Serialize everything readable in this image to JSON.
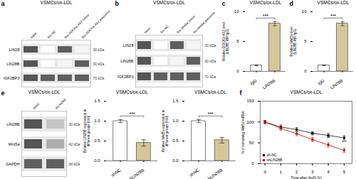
{
  "chart_data": [
    {
      "type": "heatmap",
      "panel_label": "a",
      "title": "VSMCs/ox-LDL",
      "x": [
        "Input",
        "Bio-NC",
        "Bio-DOCK9-AS2 sense",
        "Bio-DOCK9-AS2 antisense"
      ],
      "y": [
        "LIN28",
        "LIN28B",
        "IGF2BP3"
      ],
      "cells": [
        [
          0.85,
          0.0,
          0.8,
          0.05
        ],
        [
          0.85,
          0.0,
          0.05,
          0.8
        ],
        [
          0.85,
          0.8,
          0.8,
          0.8
        ]
      ],
      "annotations": [
        "30 kDa",
        "30 kDa",
        "70 kDa"
      ],
      "color": "#E8E8E8"
    },
    {
      "type": "heatmap",
      "panel_label": "b",
      "title": "VSMCs/ox-LDL",
      "x": [
        "Input",
        "Bio-NC",
        "Bio-Wnt5a sense",
        "Bio-Wnt5a antisense"
      ],
      "y": [
        "LIN28",
        "LIN28B",
        "IGF2BP3"
      ],
      "cells": [
        [
          0.85,
          0.0,
          0.8,
          0.05
        ],
        [
          0.85,
          0.0,
          0.05,
          0.8
        ],
        [
          0.85,
          0.8,
          0.8,
          0.8
        ]
      ],
      "annotations": [
        "30 kDa",
        "30 kDa",
        "70 kDa"
      ],
      "color": "#E8E8E8"
    },
    {
      "type": "bar",
      "panel_label": "c",
      "title": "VSMCs/ox-LDL",
      "categories": [
        "IgG",
        "LIN28B"
      ],
      "values": [
        1.0,
        8.0
      ],
      "errors": [
        0.08,
        0.35
      ],
      "colors": [
        "#FFFFFF",
        "#D4C89A"
      ],
      "ylabel": "Relative DOCK9-AS2 level\n(LIN28B RIP/IgG)",
      "ylim": [
        0,
        10
      ],
      "yticks": [
        0,
        5,
        10
      ],
      "annotations": [
        {
          "text": "***",
          "x": [
            "IgG",
            "LIN28B"
          ]
        }
      ]
    },
    {
      "type": "bar",
      "panel_label": "d",
      "title": "VSMCs/ox-LDL",
      "categories": [
        "IgG",
        "LIN28B"
      ],
      "values": [
        1.0,
        8.0
      ],
      "errors": [
        0.08,
        0.35
      ],
      "colors": [
        "#FFFFFF",
        "#D4C89A"
      ],
      "ylabel": "Relative Wnt5a level\n(LIN28B RIP/IgG)",
      "ylim": [
        0,
        10
      ],
      "yticks": [
        0,
        5,
        10
      ],
      "annotations": [
        {
          "text": "***",
          "x": [
            "IgG",
            "LIN28B"
          ]
        }
      ]
    },
    {
      "type": "heatmap",
      "panel_label": "e",
      "title": "VSMCs/ox-LDL",
      "x": [
        "shNC",
        "shLIN28B"
      ],
      "y": [
        "LIN28B",
        "Wnt5a",
        "GAPDH"
      ],
      "cells": [
        [
          0.85,
          0.3
        ],
        [
          0.85,
          0.4
        ],
        [
          0.8,
          0.8
        ]
      ],
      "annotations": [
        "30 kDa",
        "42 kDa",
        "36 kDa"
      ],
      "color": "#E8E8E8"
    },
    {
      "type": "bar",
      "title": "VSMCs/ox-LDL",
      "categories": [
        "shNC",
        "shLIN28B"
      ],
      "values": [
        1.0,
        0.45
      ],
      "errors": [
        0.04,
        0.08
      ],
      "colors": [
        "#FFFFFF",
        "#D4C89A"
      ],
      "ylabel": "Relative LIN28B expression in\ndifferent groups (fold)",
      "ylim": [
        0,
        1.5
      ],
      "yticks": [
        {
          "value": 0,
          "label": "0.0"
        },
        0.5,
        {
          "value": 1,
          "label": "1.0"
        },
        1.5
      ],
      "annotations": [
        {
          "text": "***",
          "x": [
            "shNC",
            "shLIN28B"
          ]
        }
      ]
    },
    {
      "type": "bar",
      "title": "VSMCs/ox-LDL",
      "categories": [
        "shNC",
        "shLIN28B"
      ],
      "values": [
        1.0,
        0.52
      ],
      "errors": [
        0.04,
        0.07
      ],
      "colors": [
        "#FFFFFF",
        "#D4C89A"
      ],
      "ylabel": "Relative Wnt5a expression in\ndifferent groups (fold)",
      "ylim": [
        0,
        1.5
      ],
      "yticks": [
        {
          "value": 0,
          "label": "0.0"
        },
        0.5,
        {
          "value": 1,
          "label": "1.0"
        },
        1.5
      ],
      "annotations": [
        {
          "text": "***",
          "x": [
            "shNC",
            "shLIN28B"
          ]
        }
      ]
    },
    {
      "type": "line",
      "panel_label": "f",
      "title": "VSMCs/ox-LDL",
      "x": [
        0,
        1,
        2,
        3,
        4,
        5
      ],
      "xlabel": "Time after ActD (h)",
      "ylabel": "% of remaining Wnt5a mRNA",
      "xlim": [
        -0.3,
        5.5
      ],
      "xticks": [
        0,
        1,
        2,
        3,
        4,
        5
      ],
      "ylim": [
        0,
        150
      ],
      "yticks": [
        0,
        50,
        100,
        150
      ],
      "legend": "lower left",
      "series": [
        {
          "name": "sh-NC",
          "color": "#111111",
          "marker": "square",
          "values": [
            100,
            88,
            82,
            73,
            68,
            62
          ],
          "errors": [
            4,
            5,
            5,
            4,
            5,
            5
          ]
        },
        {
          "name": "shLIN28B",
          "color": "#CC0000",
          "marker": "circle",
          "values": [
            100,
            85,
            72,
            58,
            45,
            32
          ],
          "errors": [
            4,
            5,
            5,
            5,
            5,
            5
          ]
        }
      ],
      "annotations": [
        {
          "x": 3,
          "text": "***"
        },
        {
          "x": 4,
          "text": "**"
        },
        {
          "x": 5,
          "text": "***"
        }
      ]
    }
  ]
}
